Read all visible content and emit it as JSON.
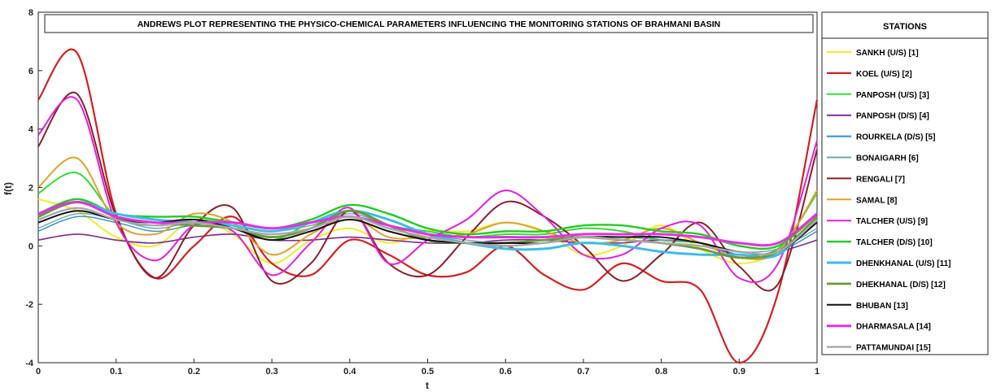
{
  "chart_data": {
    "type": "line",
    "title": "ANDREWS PLOT REPRESENTING THE PHYSICO-CHEMICAL PARAMETERS INFLUENCING THE MONITORING STATIONS OF BRAHMANI BASIN",
    "xlabel": "t",
    "ylabel": "f(t)",
    "xlim": [
      0,
      1
    ],
    "ylim": [
      -4,
      8
    ],
    "x_ticks": [
      "0",
      "0.1",
      "0.2",
      "0.3",
      "0.4",
      "0.5",
      "0.6",
      "0.7",
      "0.8",
      "0.9",
      "1"
    ],
    "y_ticks": [
      "-4",
      "-2",
      "0",
      "2",
      "4",
      "6",
      "8"
    ],
    "grid": false,
    "legend_title": "STATIONS",
    "legend_position": "right-outside",
    "x": [
      0,
      0.05,
      0.1,
      0.15,
      0.2,
      0.25,
      0.3,
      0.35,
      0.4,
      0.45,
      0.5,
      0.55,
      0.6,
      0.65,
      0.7,
      0.75,
      0.8,
      0.85,
      0.9,
      0.95,
      1
    ],
    "series": [
      {
        "name": "SANKH (U/S) [1]",
        "color": "#f2ea2a",
        "width": 2,
        "values": [
          1.6,
          1.2,
          0.3,
          0.0,
          0.9,
          0.4,
          -0.6,
          0.2,
          0.6,
          0.1,
          0.5,
          0.5,
          0.8,
          0.5,
          -0.3,
          0.0,
          0.7,
          -0.1,
          -0.6,
          -0.1,
          1.8
        ]
      },
      {
        "name": "KOEL (U/S) [2]",
        "color": "#d42020",
        "width": 2.2,
        "values": [
          5.0,
          6.6,
          1.1,
          -1.1,
          0.0,
          1.0,
          -0.6,
          -1.0,
          0.2,
          -0.3,
          -1.0,
          -0.9,
          0.0,
          -1.0,
          -1.5,
          -0.6,
          -1.2,
          -1.5,
          -4.0,
          -1.6,
          5.0
        ]
      },
      {
        "name": "PANPOSH (U/S) [3]",
        "color": "#33dd33",
        "width": 2,
        "values": [
          1.8,
          2.5,
          1.0,
          0.7,
          0.9,
          0.7,
          0.2,
          0.8,
          1.2,
          0.7,
          0.5,
          0.3,
          0.4,
          0.4,
          0.6,
          0.5,
          0.2,
          0.1,
          -0.2,
          -0.1,
          1.8
        ]
      },
      {
        "name": "PANPOSH (D/S) [4]",
        "color": "#7a2d8a",
        "width": 1.6,
        "values": [
          0.2,
          0.4,
          0.2,
          0.1,
          0.3,
          0.4,
          0.2,
          0.2,
          0.3,
          0.2,
          0.1,
          0.1,
          0.2,
          0.2,
          0.1,
          0.1,
          0.2,
          0.1,
          -0.3,
          -0.2,
          0.2
        ]
      },
      {
        "name": "ROURKELA (D/S) [5]",
        "color": "#2f8fc9",
        "width": 1.4,
        "values": [
          0.5,
          1.0,
          0.8,
          0.5,
          0.7,
          0.6,
          0.4,
          0.6,
          1.0,
          0.6,
          0.3,
          0.1,
          0.0,
          0.1,
          0.3,
          0.2,
          0.1,
          0.0,
          -0.3,
          -0.2,
          0.5
        ]
      },
      {
        "name": "BONAIGARH [6]",
        "color": "#6fa3b0",
        "width": 1.4,
        "values": [
          0.6,
          1.1,
          0.9,
          0.6,
          0.8,
          0.7,
          0.5,
          0.7,
          1.1,
          0.7,
          0.4,
          0.2,
          0.1,
          0.2,
          0.3,
          0.3,
          0.2,
          0.1,
          -0.2,
          -0.1,
          0.6
        ]
      },
      {
        "name": "RENGALI [7]",
        "color": "#8a1f2a",
        "width": 2,
        "values": [
          3.4,
          5.2,
          1.0,
          -1.1,
          0.7,
          1.3,
          -1.2,
          -0.6,
          1.2,
          -0.6,
          -1.0,
          0.3,
          1.5,
          1.0,
          0.0,
          -1.2,
          -0.3,
          0.8,
          -0.7,
          -1.3,
          3.3
        ]
      },
      {
        "name": "SAMAL [8]",
        "color": "#e0a030",
        "width": 2,
        "values": [
          2.0,
          3.0,
          0.8,
          0.4,
          1.1,
          0.8,
          -0.3,
          0.4,
          1.0,
          0.3,
          0.3,
          0.4,
          0.8,
          0.5,
          0.1,
          0.2,
          0.6,
          0.1,
          -0.4,
          -0.2,
          1.9
        ]
      },
      {
        "name": "TALCHER (U/S) [9]",
        "color": "#e020e0",
        "width": 2,
        "values": [
          3.8,
          5.0,
          0.8,
          -0.5,
          0.7,
          0.5,
          -1.0,
          0.1,
          1.3,
          -0.6,
          0.2,
          0.9,
          1.9,
          1.0,
          -0.3,
          -0.3,
          0.6,
          0.7,
          -1.1,
          -0.6,
          3.6
        ]
      },
      {
        "name": "TALCHER (D/S) [10]",
        "color": "#22cc22",
        "width": 2.4,
        "values": [
          1.1,
          1.6,
          1.1,
          1.0,
          1.0,
          0.8,
          0.6,
          0.9,
          1.4,
          1.1,
          0.6,
          0.4,
          0.5,
          0.5,
          0.7,
          0.7,
          0.5,
          0.4,
          0.0,
          0.0,
          1.1
        ]
      },
      {
        "name": "DHENKHANAL (U/S) [11]",
        "color": "#3cbde8",
        "width": 3,
        "values": [
          1.0,
          1.5,
          1.1,
          0.9,
          0.8,
          0.7,
          0.5,
          0.8,
          1.2,
          0.9,
          0.4,
          0.1,
          -0.1,
          -0.1,
          0.1,
          0.0,
          -0.2,
          -0.3,
          -0.3,
          -0.3,
          1.0
        ]
      },
      {
        "name": "DHEKHANAL (D/S) [12]",
        "color": "#6b9a35",
        "width": 2.8,
        "values": [
          1.0,
          1.5,
          1.0,
          0.8,
          0.7,
          0.6,
          0.3,
          0.6,
          1.2,
          0.7,
          0.2,
          0.1,
          0.1,
          0.2,
          0.3,
          0.2,
          0.1,
          -0.1,
          -0.4,
          -0.2,
          1.0
        ]
      },
      {
        "name": "BHUBAN [13]",
        "color": "#111111",
        "width": 2,
        "values": [
          0.8,
          1.2,
          0.9,
          0.8,
          0.9,
          0.6,
          0.2,
          0.5,
          0.9,
          0.5,
          0.2,
          0.1,
          0.1,
          0.1,
          0.3,
          0.3,
          0.3,
          0.1,
          -0.2,
          -0.2,
          0.8
        ]
      },
      {
        "name": "DHARMASALA [14]",
        "color": "#e62ee6",
        "width": 3,
        "values": [
          1.1,
          1.5,
          1.0,
          0.8,
          0.8,
          0.8,
          0.6,
          0.8,
          1.0,
          0.7,
          0.4,
          0.3,
          0.3,
          0.3,
          0.4,
          0.4,
          0.4,
          0.3,
          0.1,
          0.1,
          1.1
        ]
      },
      {
        "name": "PATTAMUNDAI [15]",
        "color": "#a8a8a8",
        "width": 2.4,
        "values": [
          0.9,
          1.3,
          0.9,
          0.7,
          0.8,
          0.6,
          0.4,
          0.6,
          1.0,
          0.6,
          0.3,
          0.1,
          0.0,
          0.1,
          0.3,
          0.2,
          0.1,
          0.0,
          -0.2,
          -0.2,
          0.9
        ]
      }
    ]
  }
}
